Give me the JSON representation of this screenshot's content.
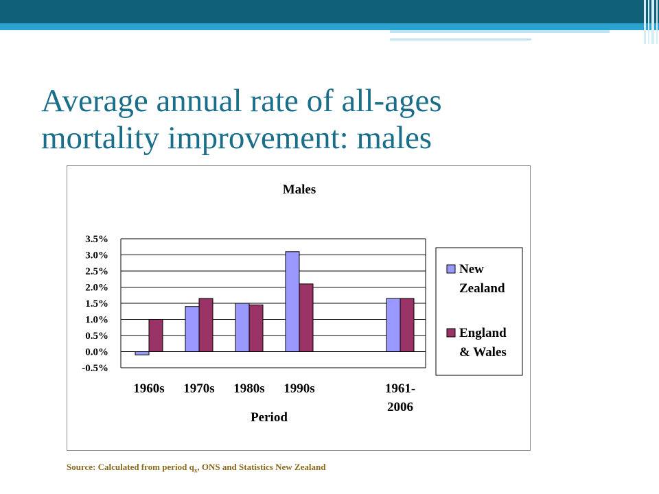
{
  "slide": {
    "title_line1": "Average annual rate of all-ages",
    "title_line2": "mortality improvement: males",
    "source_prefix": "Source: Calculated from period q",
    "source_sub": "x",
    "source_suffix": ", ONS and Statistics New Zealand"
  },
  "colors": {
    "header_dark": "#0f6078",
    "header_light": "#2aa4cf",
    "title": "#1a6e8a",
    "source": "#8a6a1a"
  },
  "chart_data": {
    "type": "bar",
    "title": "Males",
    "xlabel": "Period",
    "ylabel": "",
    "categories": [
      "1960s",
      "1970s",
      "1980s",
      "1990s",
      "1961-\n2006"
    ],
    "category_lines": [
      [
        "1960s"
      ],
      [
        "1970s"
      ],
      [
        "1980s"
      ],
      [
        "1990s"
      ],
      [
        "1961-",
        "2006"
      ]
    ],
    "series": [
      {
        "name": "New Zealand",
        "legend_lines": [
          "New",
          "Zealand"
        ],
        "color": "#9999ff",
        "values": [
          -0.1,
          1.4,
          1.5,
          3.1,
          1.65
        ]
      },
      {
        "name": "England & Wales",
        "legend_lines": [
          "England",
          "& Wales"
        ],
        "color": "#993366",
        "values": [
          1.0,
          1.65,
          1.45,
          2.1,
          1.65
        ]
      }
    ],
    "ylim": [
      -0.5,
      3.5
    ],
    "yticks": [
      "3.5%",
      "3.0%",
      "2.5%",
      "2.0%",
      "1.5%",
      "1.0%",
      "0.5%",
      "0.0%",
      "-0.5%"
    ],
    "ytick_values": [
      3.5,
      3.0,
      2.5,
      2.0,
      1.5,
      1.0,
      0.5,
      0.0,
      -0.5
    ],
    "grid": true,
    "legend_position": "right"
  }
}
